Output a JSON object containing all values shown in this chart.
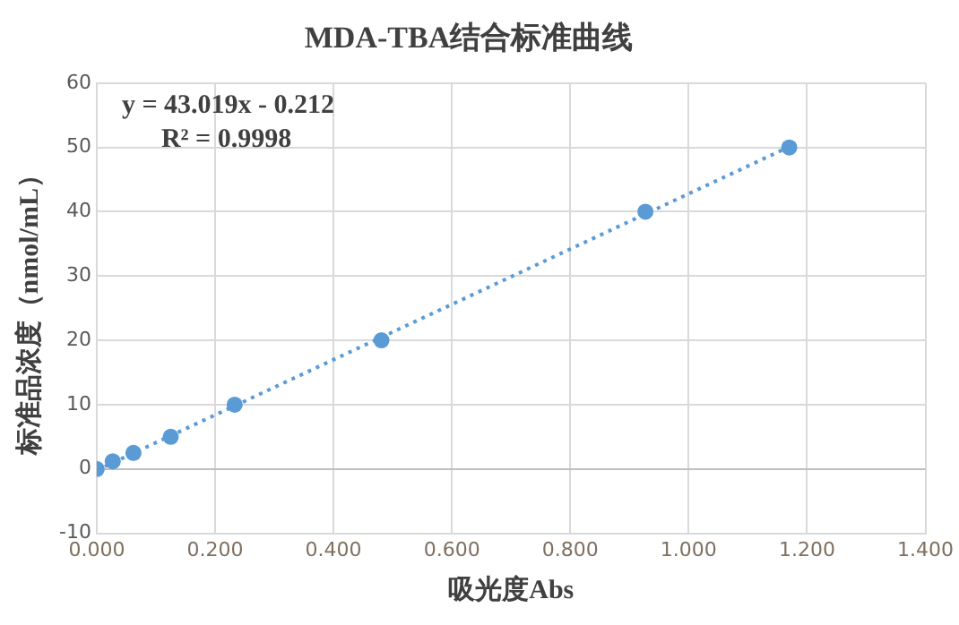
{
  "chart_data": {
    "type": "scatter",
    "title": "MDA-TBA结合标准曲线",
    "xlabel": "吸光度Abs",
    "ylabel": "标准品浓度（nmol/mL）",
    "x": [
      0.0,
      0.027,
      0.062,
      0.125,
      0.233,
      0.481,
      0.927,
      1.17
    ],
    "series": [
      {
        "color": "#5b9bd5",
        "values": [
          0,
          1.2,
          2.5,
          5,
          10,
          20,
          40,
          50
        ],
        "marker": "circle"
      },
      {
        "type": "line",
        "color": "#5b9bd5",
        "x": [
          0,
          1.17
        ],
        "values": [
          -0.2,
          50.1
        ],
        "line_style": "dotted",
        "marker": "none"
      }
    ],
    "xlim": [
      0,
      1.4
    ],
    "xticks": [
      {
        "value": 0,
        "label": "0.000"
      },
      {
        "value": 0.2,
        "label": "0.200"
      },
      {
        "value": 0.4,
        "label": "0.400"
      },
      {
        "value": 0.6,
        "label": "0.600"
      },
      {
        "value": 0.8,
        "label": "0.800"
      },
      {
        "value": 1.0,
        "label": "1.000"
      },
      {
        "value": 1.2,
        "label": "1.200"
      },
      {
        "value": 1.4,
        "label": "1.400"
      }
    ],
    "ylim": [
      -10,
      60
    ],
    "yticks": [
      -10,
      0,
      10,
      20,
      30,
      40,
      50,
      60
    ],
    "annotations": [
      "y = 43.019x - 0.212",
      "R² = 0.9998"
    ],
    "grid": true,
    "legend": false
  }
}
